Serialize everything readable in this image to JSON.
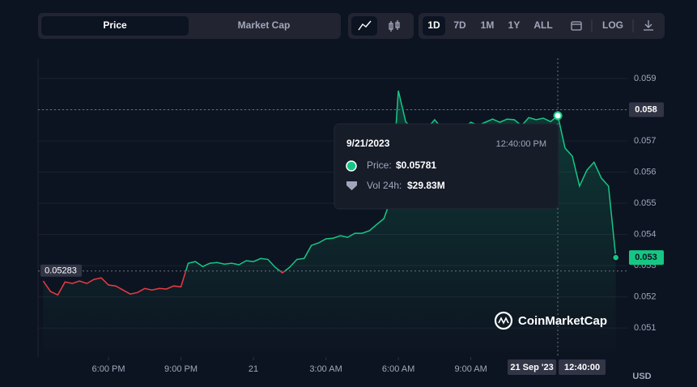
{
  "toolbar": {
    "tabs": [
      "Price",
      "Market Cap"
    ],
    "ranges": [
      "1D",
      "7D",
      "1M",
      "1Y",
      "ALL"
    ],
    "log": "LOG"
  },
  "watermark": "CoinMarketCap",
  "chart_data": {
    "type": "line",
    "unit": "USD",
    "values": [
      0.05251,
      0.05217,
      0.05206,
      0.05248,
      0.05243,
      0.05251,
      0.05243,
      0.05256,
      0.05261,
      0.05238,
      0.05235,
      0.05222,
      0.05209,
      0.05214,
      0.05227,
      0.05222,
      0.05227,
      0.05225,
      0.05235,
      0.05232,
      0.05308,
      0.05313,
      0.05297,
      0.05308,
      0.0531,
      0.05305,
      0.05308,
      0.05303,
      0.05316,
      0.05313,
      0.05323,
      0.0532,
      0.05295,
      0.05277,
      0.05295,
      0.0532,
      0.05323,
      0.05365,
      0.05373,
      0.05386,
      0.05388,
      0.05396,
      0.05391,
      0.05404,
      0.05404,
      0.05412,
      0.05432,
      0.05451,
      0.05516,
      0.05861,
      0.05762,
      0.05736,
      0.05741,
      0.05741,
      0.05768,
      0.05741,
      0.0574,
      0.0575,
      0.0574,
      0.0576,
      0.0575,
      0.0576,
      0.0577,
      0.0576,
      0.0577,
      0.05768,
      0.05749,
      0.05775,
      0.05768,
      0.05773,
      0.05762,
      0.05781,
      0.05677,
      0.05651,
      0.05555,
      0.05606,
      0.05632,
      0.05581,
      0.05555,
      0.05326
    ],
    "color_up": "#16c784",
    "color_down": "#ea3943",
    "baseline": 0.05283,
    "last_label": "0.053",
    "xlim": [
      -0.72,
      80.6
    ],
    "xticks": [
      {
        "value": 9,
        "label": "6:00 PM"
      },
      {
        "value": 19,
        "label": "9:00 PM"
      },
      {
        "value": 29,
        "label": "21"
      },
      {
        "value": 39,
        "label": "3:00 AM"
      },
      {
        "value": 49,
        "label": "6:00 AM"
      },
      {
        "value": 59,
        "label": "9:00 AM"
      }
    ],
    "ylim": [
      0.05007,
      0.05965
    ],
    "yticks": [
      0.051,
      0.052,
      0.053,
      0.054,
      0.055,
      0.056,
      0.057,
      0.058,
      0.059
    ],
    "grid": true,
    "crosshair": {
      "x": 71,
      "y": 0.058,
      "date": "21 Sep '23",
      "time": "12:40:00"
    },
    "tooltip": {
      "date": "9/21/2023",
      "time": "12:40:00 PM",
      "price_label": "Price:",
      "price": "$0.05781",
      "volume_label": "Vol 24h:",
      "volume": "$29.83M"
    }
  }
}
